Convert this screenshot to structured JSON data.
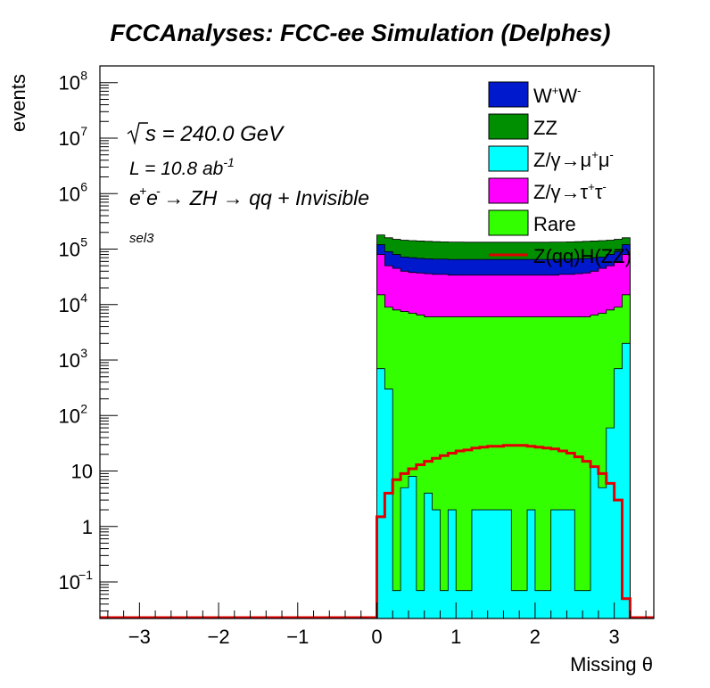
{
  "chart_data": {
    "type": "area",
    "title": "FCCAnalyses: FCC-ee Simulation (Delphes)",
    "xlabel": "Missing θ",
    "ylabel": "events",
    "log_y": true,
    "stacked": true,
    "xlim": [
      -3.5,
      3.5
    ],
    "ylim": [
      0.022,
      200000000
    ],
    "grid": false,
    "legend_position": "top-right",
    "annotations": {
      "sqrt_s": "s = 240.0 GeV",
      "luminosity": "L = 10.8 ab",
      "luminosity_exp": "-1",
      "process": "e e → ZH → qq + Invisible",
      "selection": "sel3"
    },
    "x_ticks": [
      {
        "label": "−3",
        "value": -3
      },
      {
        "label": "−2",
        "value": -2
      },
      {
        "label": "−1",
        "value": -1
      },
      {
        "label": "0",
        "value": 0
      },
      {
        "label": "1",
        "value": 1
      },
      {
        "label": "2",
        "value": 2
      },
      {
        "label": "3",
        "value": 3
      }
    ],
    "y_ticks": [
      {
        "base": "10",
        "exp": "8",
        "value": 100000000
      },
      {
        "base": "10",
        "exp": "7",
        "value": 10000000
      },
      {
        "base": "10",
        "exp": "6",
        "value": 1000000
      },
      {
        "base": "10",
        "exp": "5",
        "value": 100000
      },
      {
        "base": "10",
        "exp": "4",
        "value": 10000
      },
      {
        "base": "10",
        "exp": "3",
        "value": 1000
      },
      {
        "base": "10",
        "exp": "2",
        "value": 100
      },
      {
        "base": "10",
        "exp": "",
        "value": 10
      },
      {
        "base": "1",
        "exp": "",
        "value": 1
      },
      {
        "base": "10",
        "exp": "−1",
        "value": 0.1
      }
    ],
    "bins": {
      "start": 0,
      "end": 3.2,
      "width": 0.1
    },
    "stack_order": [
      "Z/γ→μ⁺μ⁻",
      "Rare",
      "Z/γ→τ⁺τ⁻",
      "W⁺W⁻",
      "ZZ"
    ],
    "stack_cumulative_tops": [
      {
        "name": "Z/γ→μ⁺μ⁻",
        "values": [
          700,
          300,
          0.07,
          5,
          8,
          0.07,
          4,
          2,
          0.07,
          2,
          0.07,
          0.07,
          2,
          2,
          2,
          2,
          2,
          0.07,
          0.07,
          2,
          0.07,
          0.07,
          2,
          2,
          2,
          0.07,
          0.07,
          12,
          5,
          60,
          700,
          2000
        ]
      },
      {
        "name": "Rare",
        "values": [
          15000,
          9000,
          8000,
          7500,
          7000,
          6500,
          6000,
          6000,
          6000,
          6000,
          6000,
          6000,
          6000,
          6000,
          6000,
          6000,
          6000,
          6000,
          6000,
          6000,
          6000,
          6000,
          6000,
          6000,
          6000,
          6000,
          6000,
          6500,
          7000,
          8000,
          9000,
          15000
        ]
      },
      {
        "name": "Z/γ→τ⁺τ⁻",
        "values": [
          80000,
          50000,
          45000,
          40000,
          38000,
          37000,
          36000,
          35000,
          35000,
          34000,
          34000,
          34000,
          34000,
          34000,
          34000,
          34000,
          34000,
          34000,
          34000,
          34000,
          34000,
          34000,
          34000,
          35000,
          35000,
          36000,
          37000,
          40000,
          45000,
          50000,
          60000,
          80000
        ]
      },
      {
        "name": "W⁺W⁻",
        "values": [
          120000,
          90000,
          80000,
          72000,
          70000,
          68000,
          67000,
          66000,
          66000,
          65000,
          65000,
          65000,
          65000,
          65000,
          65000,
          65000,
          65000,
          65000,
          65000,
          65000,
          65000,
          65000,
          65000,
          66000,
          66000,
          67000,
          68000,
          70000,
          72000,
          80000,
          90000,
          120000
        ]
      },
      {
        "name": "ZZ",
        "values": [
          180000,
          160000,
          150000,
          145000,
          142000,
          140000,
          138000,
          136000,
          135000,
          134000,
          134000,
          133000,
          133000,
          133000,
          133000,
          133000,
          133000,
          133000,
          133000,
          133000,
          133000,
          133000,
          134000,
          134000,
          135000,
          136000,
          138000,
          140000,
          142000,
          145000,
          150000,
          160000
        ]
      }
    ],
    "signal": {
      "name": "Z(qq)H(ZZ)",
      "values": [
        1.5,
        4,
        7,
        9,
        11,
        13,
        15,
        17,
        19,
        21,
        23,
        24,
        26,
        27,
        28,
        28,
        29,
        29,
        29,
        28,
        27,
        26,
        25,
        23,
        21,
        18,
        15,
        12,
        9,
        6,
        3,
        0.05
      ]
    },
    "legend": [
      {
        "label": "W",
        "sup1": "+",
        "mid": "W",
        "sup2": "-",
        "color": "#0019cc",
        "kind": "fill"
      },
      {
        "label": "ZZ",
        "color": "#008f00",
        "kind": "fill"
      },
      {
        "label": "Z/γ→μ",
        "sup1": "+",
        "mid": "μ",
        "sup2": "-",
        "color": "#00ffff",
        "kind": "fill"
      },
      {
        "label": "Z/γ→τ",
        "sup1": "+",
        "mid": "τ",
        "sup2": "-",
        "color": "#ff00ff",
        "kind": "fill"
      },
      {
        "label": "Rare",
        "color": "#33ff00",
        "kind": "fill"
      },
      {
        "label": "Z(qq)H(ZZ)",
        "color": "#e00000",
        "kind": "line"
      }
    ],
    "colors": {
      "Z/γ→μ⁺μ⁻": "#00ffff",
      "Rare": "#33ff00",
      "Z/γ→τ⁺τ⁻": "#ff00ff",
      "W⁺W⁻": "#0019cc",
      "ZZ": "#008f00",
      "Z(qq)H(ZZ)": "#e00000"
    }
  }
}
